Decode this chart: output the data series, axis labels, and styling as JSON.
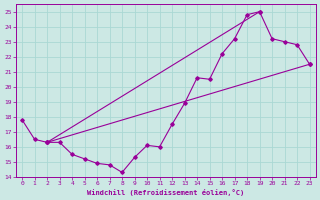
{
  "title": "",
  "xlabel": "Windchill (Refroidissement éolien,°C)",
  "ylabel": "",
  "bg_color": "#cce8e4",
  "line_color": "#990099",
  "grid_color": "#aad8d4",
  "xlim": [
    -0.5,
    23.5
  ],
  "ylim": [
    14,
    25.5
  ],
  "xticks": [
    0,
    1,
    2,
    3,
    4,
    5,
    6,
    7,
    8,
    9,
    10,
    11,
    12,
    13,
    14,
    15,
    16,
    17,
    18,
    19,
    20,
    21,
    22,
    23
  ],
  "yticks": [
    14,
    15,
    16,
    17,
    18,
    19,
    20,
    21,
    22,
    23,
    24,
    25
  ],
  "line1": {
    "x": [
      0,
      1,
      2,
      3,
      4,
      5,
      6,
      7,
      8,
      9,
      10,
      11,
      12,
      13,
      14,
      15,
      16,
      17,
      18,
      19,
      20,
      21,
      22,
      23
    ],
    "y": [
      17.8,
      16.5,
      16.3,
      16.3,
      15.5,
      15.2,
      14.9,
      14.8,
      14.3,
      15.3,
      16.1,
      16.0,
      17.5,
      18.9,
      20.6,
      20.5,
      22.2,
      23.2,
      24.8,
      25.0,
      23.2,
      23.0,
      22.8,
      21.5
    ]
  },
  "line2": {
    "x": [
      2,
      23
    ],
    "y": [
      16.3,
      21.5
    ]
  },
  "line3": {
    "x": [
      2,
      19
    ],
    "y": [
      16.3,
      25.0
    ]
  }
}
